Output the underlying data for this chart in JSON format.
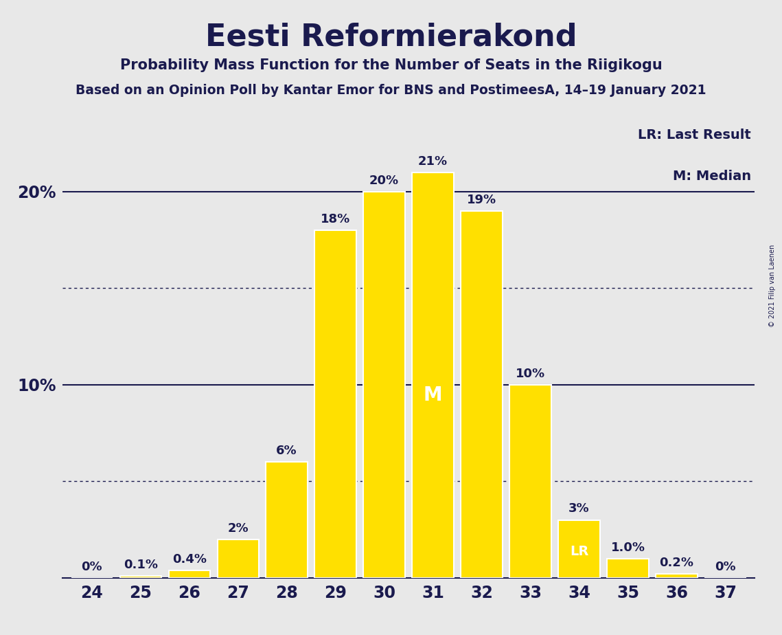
{
  "title": "Eesti Reformierakond",
  "subtitle1": "Probability Mass Function for the Number of Seats in the Riigikogu",
  "subtitle2": "Based on an Opinion Poll by Kantar Emor for BNS and PostimeesA, 14–19 January 2021",
  "copyright": "© 2021 Filip van Laenen",
  "categories": [
    24,
    25,
    26,
    27,
    28,
    29,
    30,
    31,
    32,
    33,
    34,
    35,
    36,
    37
  ],
  "values": [
    0.0,
    0.1,
    0.4,
    2.0,
    6.0,
    18.0,
    20.0,
    21.0,
    19.0,
    10.0,
    3.0,
    1.0,
    0.2,
    0.0
  ],
  "labels": [
    "0%",
    "0.1%",
    "0.4%",
    "2%",
    "6%",
    "18%",
    "20%",
    "21%",
    "19%",
    "10%",
    "3%",
    "1.0%",
    "0.2%",
    "0%"
  ],
  "bar_color": "#FFE000",
  "bar_edgecolor": "#FFFFFF",
  "background_color": "#E8E8E8",
  "text_color": "#1a1a4e",
  "median_seat": 31,
  "last_result_seat": 34,
  "legend_lr": "LR: Last Result",
  "legend_m": "M: Median",
  "ylim_max": 24,
  "dotted_lines": [
    5.0,
    15.0
  ],
  "solid_lines": [
    10.0,
    20.0
  ]
}
